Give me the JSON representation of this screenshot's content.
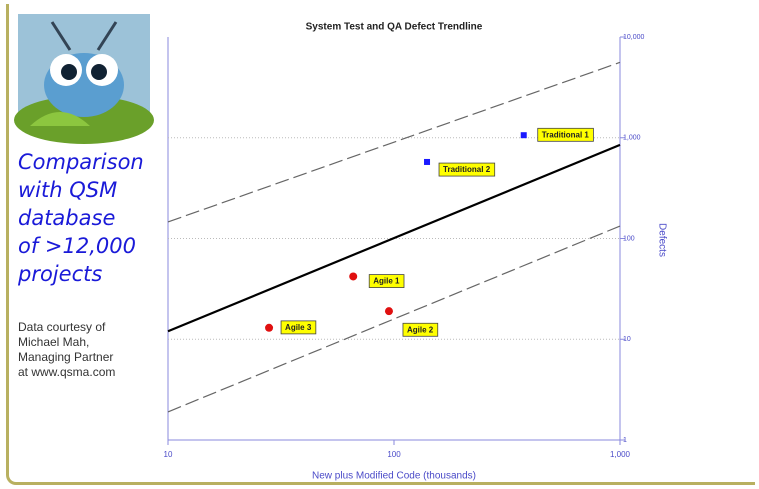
{
  "chart_data": {
    "type": "scatter",
    "title": "System Test and QA Defect Trendline",
    "x_label": "New plus Modified Code (thousands)",
    "y_label": "Defects",
    "x_log": true,
    "y_log": true,
    "grid": true,
    "xlim": [
      10,
      1000
    ],
    "ylim": [
      1,
      10000
    ],
    "xticks": [
      10,
      100,
      {
        "value": 1000,
        "label": "1,000"
      }
    ],
    "yticks": [
      1,
      10,
      100,
      {
        "value": 1000,
        "label": "1,000"
      },
      {
        "value": 10000,
        "label": "10,000"
      }
    ],
    "points": [
      {
        "label": "Traditional 1",
        "x": 375,
        "y": 1060,
        "color": "#1a1aff",
        "marker": "square"
      },
      {
        "label": "Traditional 2",
        "x": 140,
        "y": 575,
        "color": "#1a1aff",
        "marker": "square"
      },
      {
        "label": "Agile 1",
        "x": 66,
        "y": 42,
        "color": "#e01010",
        "marker": "circle"
      },
      {
        "label": "Agile 2",
        "x": 95,
        "y": 19,
        "color": "#e01010",
        "marker": "circle"
      },
      {
        "label": "Agile 3",
        "x": 28,
        "y": 13,
        "color": "#e01010",
        "marker": "circle"
      }
    ],
    "lines": [
      {
        "x": [
          10,
          1000
        ],
        "values": [
          12,
          850
        ],
        "style": "solid",
        "color": "#000000"
      },
      {
        "x": [
          10,
          1000
        ],
        "values": [
          146,
          5600
        ],
        "style": "dashed",
        "color": "#666666"
      },
      {
        "x": [
          10,
          1000
        ],
        "values": [
          1.9,
          133
        ],
        "style": "dashed",
        "color": "#666666"
      }
    ]
  },
  "side_panel": {
    "heading_lines": [
      "Comparison",
      "with QSM",
      "database",
      "of >12,000",
      "projects"
    ],
    "note_lines": [
      "Data courtesy of",
      "Michael Mah,",
      "Managing Partner",
      "at www.qsma.com"
    ]
  }
}
